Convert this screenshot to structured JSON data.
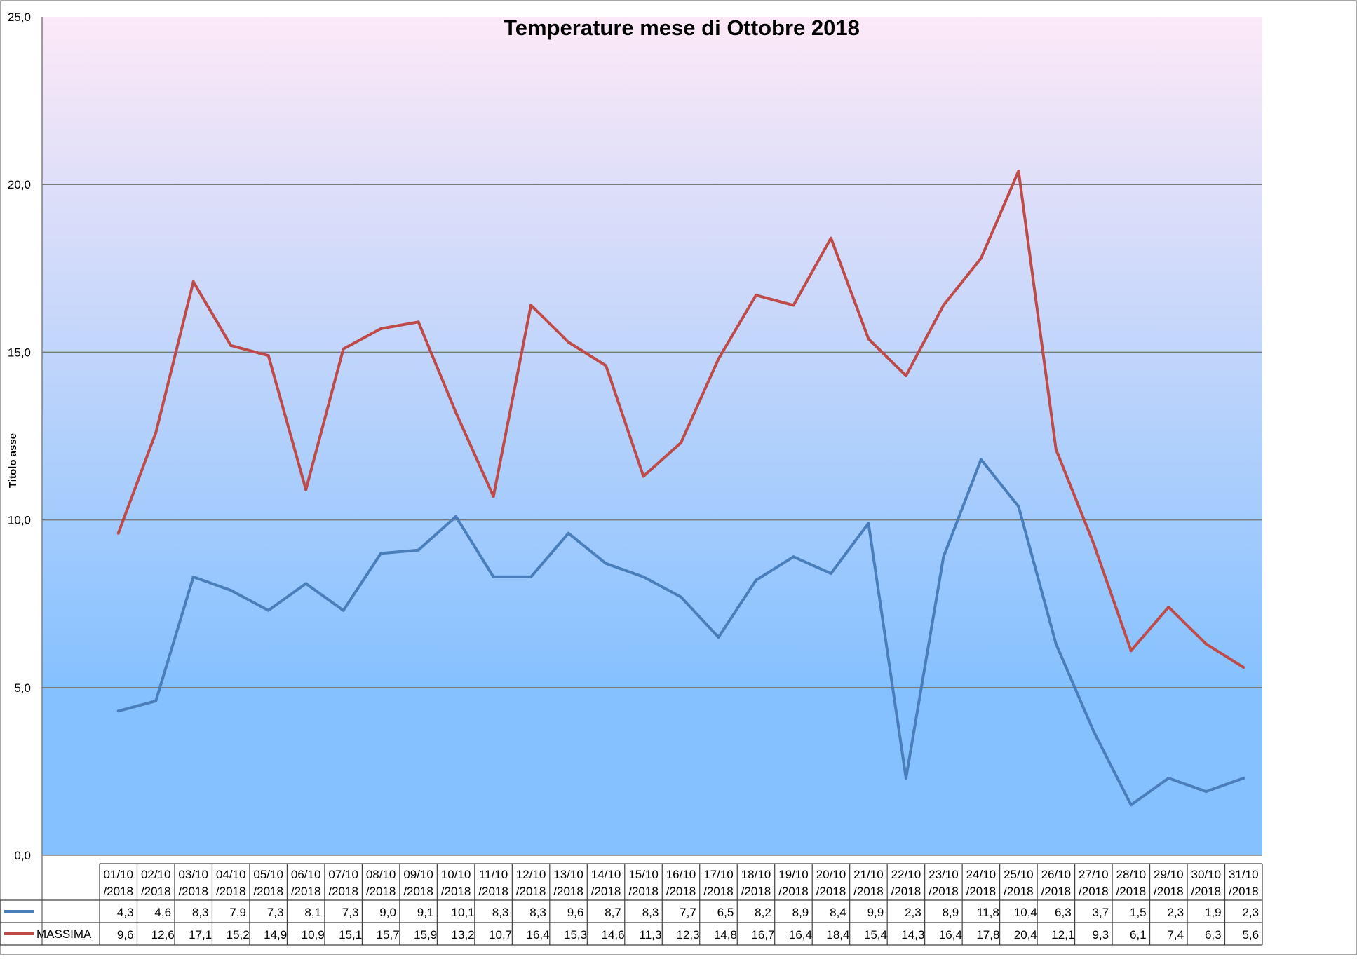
{
  "chart_data": {
    "type": "line",
    "title": "Temperature mese di Ottobre 2018",
    "xlabel": "",
    "ylabel": "Titolo asse",
    "ylim": [
      0,
      25
    ],
    "yticks": [
      "0,0",
      "5,0",
      "10,0",
      "15,0",
      "20,0",
      "25,0"
    ],
    "grid": true,
    "legend": "data-table-left",
    "categories": [
      "01/10/2018",
      "02/10/2018",
      "03/10/2018",
      "04/10/2018",
      "05/10/2018",
      "06/10/2018",
      "07/10/2018",
      "08/10/2018",
      "09/10/2018",
      "10/10/2018",
      "11/10/2018",
      "12/10/2018",
      "13/10/2018",
      "14/10/2018",
      "15/10/2018",
      "16/10/2018",
      "17/10/2018",
      "18/10/2018",
      "19/10/2018",
      "20/10/2018",
      "21/10/2018",
      "22/10/2018",
      "23/10/2018",
      "24/10/2018",
      "25/10/2018",
      "26/10/2018",
      "27/10/2018",
      "28/10/2018",
      "29/10/2018",
      "30/10/2018",
      "31/10/2018"
    ],
    "series": [
      {
        "name": "",
        "color": "#4a7ebb",
        "values": [
          4.3,
          4.6,
          8.3,
          7.9,
          7.3,
          8.1,
          7.3,
          9.0,
          9.1,
          10.1,
          8.3,
          8.3,
          9.6,
          8.7,
          8.3,
          7.7,
          6.5,
          8.2,
          8.9,
          8.4,
          9.9,
          2.3,
          8.9,
          11.8,
          10.4,
          6.3,
          3.7,
          1.5,
          2.3,
          1.9,
          2.3
        ],
        "labels": [
          "4,3",
          "4,6",
          "8,3",
          "7,9",
          "7,3",
          "8,1",
          "7,3",
          "9,0",
          "9,1",
          "10,1",
          "8,3",
          "8,3",
          "9,6",
          "8,7",
          "8,3",
          "7,7",
          "6,5",
          "8,2",
          "8,9",
          "8,4",
          "9,9",
          "2,3",
          "8,9",
          "11,8",
          "10,4",
          "6,3",
          "3,7",
          "1,5",
          "2,3",
          "1,9",
          "2,3"
        ]
      },
      {
        "name": "MASSIMA",
        "color": "#be4b48",
        "values": [
          9.6,
          12.6,
          17.1,
          15.2,
          14.9,
          10.9,
          15.1,
          15.7,
          15.9,
          13.2,
          10.7,
          16.4,
          15.3,
          14.6,
          11.3,
          12.3,
          14.8,
          16.7,
          16.4,
          18.4,
          15.4,
          14.3,
          16.4,
          17.8,
          20.4,
          12.1,
          9.3,
          6.1,
          7.4,
          6.3,
          5.6
        ],
        "labels": [
          "9,6",
          "12,6",
          "17,1",
          "15,2",
          "14,9",
          "10,9",
          "15,1",
          "15,7",
          "15,9",
          "13,2",
          "10,7",
          "16,4",
          "15,3",
          "14,6",
          "11,3",
          "12,3",
          "14,8",
          "16,7",
          "16,4",
          "18,4",
          "15,4",
          "14,3",
          "16,4",
          "17,8",
          "20,4",
          "12,1",
          "9,3",
          "6,1",
          "7,4",
          "6,3",
          "5,6"
        ]
      }
    ],
    "plot_background": [
      "#fde9f7",
      "#85c1ff"
    ]
  }
}
